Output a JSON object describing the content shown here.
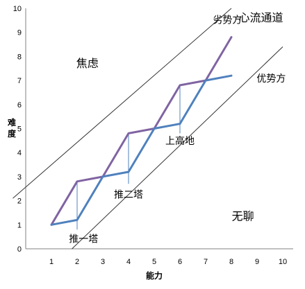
{
  "chart_data": {
    "type": "line",
    "xlabel": "能力",
    "ylabel": "难度",
    "xlim": [
      0,
      10
    ],
    "ylim": [
      0,
      10
    ],
    "x_ticks": [
      1,
      2,
      3,
      4,
      5,
      6,
      7,
      8,
      9,
      10
    ],
    "y_ticks": [
      0,
      1,
      2,
      3,
      4,
      5,
      6,
      7,
      8,
      9,
      10
    ],
    "grid": false,
    "series": [
      {
        "color": "#8064a2",
        "points": [
          [
            1,
            1
          ],
          [
            2,
            2.8
          ],
          [
            3,
            3
          ],
          [
            4,
            4.8
          ],
          [
            5,
            5
          ],
          [
            6,
            6.8
          ],
          [
            7,
            7
          ],
          [
            8,
            8.8
          ]
        ]
      },
      {
        "color": "#4f81bd",
        "points": [
          [
            1,
            1
          ],
          [
            2,
            1.2
          ],
          [
            3,
            3
          ],
          [
            4,
            3.2
          ],
          [
            5,
            5
          ],
          [
            6,
            5.2
          ],
          [
            7,
            7
          ],
          [
            8,
            7.2
          ]
        ]
      }
    ],
    "guide_lines": [
      {
        "from": [
          -0.5,
          2.1
        ],
        "to": [
          8,
          10
        ]
      },
      {
        "from": [
          1.8,
          0
        ],
        "to": [
          10,
          8.4
        ]
      }
    ],
    "markers": [
      {
        "x": 2,
        "from": 2.8,
        "to": 0.8
      },
      {
        "x": 4,
        "from": 4.8,
        "to": 2.7
      },
      {
        "x": 6,
        "from": 6.8,
        "to": 4.8
      }
    ],
    "annotations": [
      {
        "text": "推一塔",
        "x": 2.25,
        "y": 0.27,
        "kind": "note"
      },
      {
        "text": "推二塔",
        "x": 4.0,
        "y": 2.12,
        "kind": "note"
      },
      {
        "text": "上高地",
        "x": 6.0,
        "y": 4.35,
        "kind": "note"
      },
      {
        "text": "劣势方",
        "x": 7.85,
        "y": 9.38,
        "kind": "note"
      },
      {
        "text": "心流通道",
        "x": 9.15,
        "y": 9.45,
        "kind": "zone"
      },
      {
        "text": "优势方",
        "x": 9.55,
        "y": 6.95,
        "kind": "note"
      },
      {
        "text": "焦虑",
        "x": 2.4,
        "y": 7.55,
        "kind": "zone"
      },
      {
        "text": "无聊",
        "x": 8.45,
        "y": 1.2,
        "kind": "zone"
      }
    ]
  }
}
